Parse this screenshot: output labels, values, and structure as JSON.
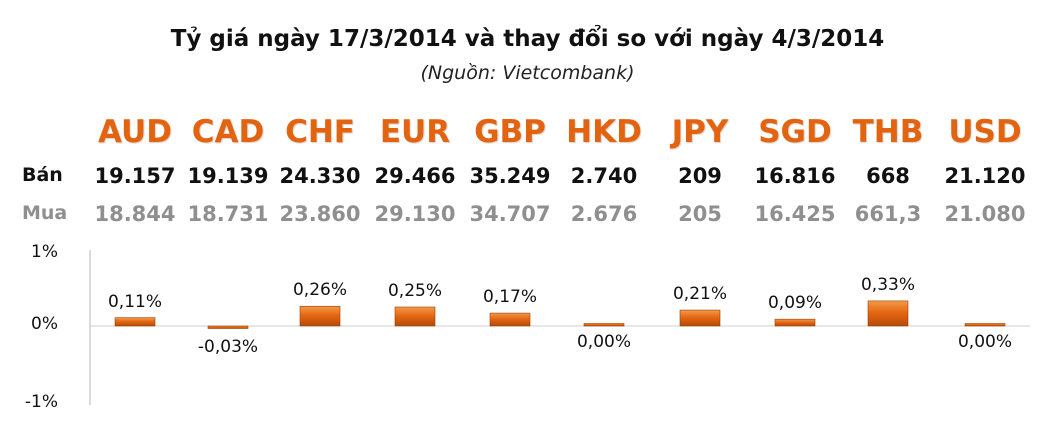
{
  "header": {
    "title": "Tỷ giá ngày 17/3/2014 và thay đổi so với ngày 4/3/2014",
    "subtitle": "(Nguồn: Vietcombank)"
  },
  "rows": {
    "sell_label": "Bán",
    "buy_label": "Mua"
  },
  "currencies": [
    {
      "code": "AUD",
      "sell": "19.157",
      "buy": "18.844",
      "change_label": "0,11%"
    },
    {
      "code": "CAD",
      "sell": "19.139",
      "buy": "18.731",
      "change_label": "-0,03%"
    },
    {
      "code": "CHF",
      "sell": "24.330",
      "buy": "23.860",
      "change_label": "0,26%"
    },
    {
      "code": "EUR",
      "sell": "29.466",
      "buy": "29.130",
      "change_label": "0,25%"
    },
    {
      "code": "GBP",
      "sell": "35.249",
      "buy": "34.707",
      "change_label": "0,17%"
    },
    {
      "code": "HKD",
      "sell": "2.740",
      "buy": "2.676",
      "change_label": "0,00%"
    },
    {
      "code": "JPY",
      "sell": "209",
      "buy": "205",
      "change_label": "0,21%"
    },
    {
      "code": "SGD",
      "sell": "16.816",
      "buy": "16.425",
      "change_label": "0,09%"
    },
    {
      "code": "THB",
      "sell": "668",
      "buy": "661,3",
      "change_label": "0,33%"
    },
    {
      "code": "USD",
      "sell": "21.120",
      "buy": "21.080",
      "change_label": "0,00%"
    }
  ],
  "chart_data": {
    "type": "bar",
    "categories": [
      "AUD",
      "CAD",
      "CHF",
      "EUR",
      "GBP",
      "HKD",
      "JPY",
      "SGD",
      "THB",
      "USD"
    ],
    "values": [
      0.11,
      -0.03,
      0.26,
      0.25,
      0.17,
      0.0,
      0.21,
      0.09,
      0.33,
      0.0
    ],
    "ylim": [
      -1,
      1
    ],
    "yticks": [
      "1%",
      "0%",
      "-1%"
    ],
    "grid": false,
    "bar_color": "#e26410"
  }
}
